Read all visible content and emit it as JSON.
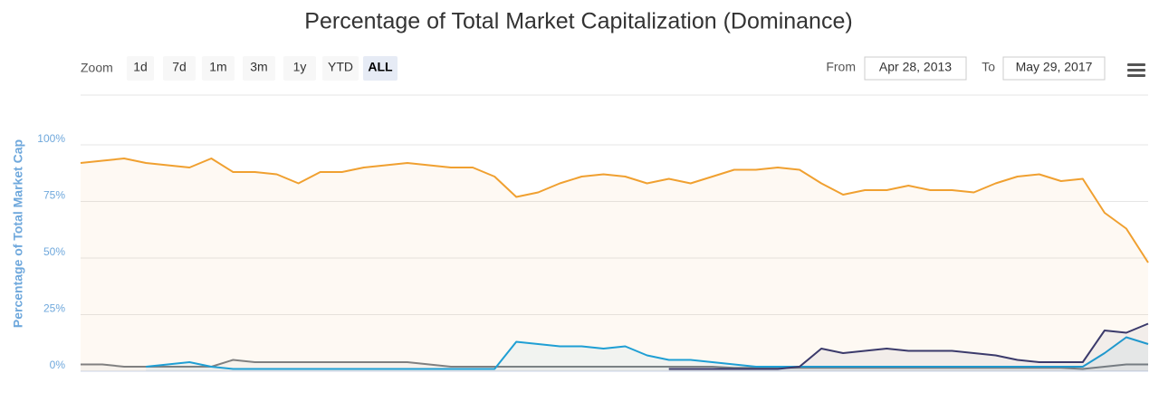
{
  "chart_data": {
    "type": "line",
    "title": "Percentage of Total Market Capitalization (Dominance)",
    "y_label": "Percentage of Total Market Cap",
    "categories": [
      null,
      null,
      null,
      null,
      null,
      null,
      null,
      null,
      null,
      null,
      null,
      null,
      null,
      null,
      null,
      null,
      null,
      null,
      null,
      null,
      null,
      null,
      null,
      null,
      null,
      null,
      null,
      null,
      null,
      null,
      null,
      null,
      null,
      null,
      null,
      null,
      null,
      null,
      null,
      null,
      null,
      null,
      null,
      null,
      null,
      null,
      null,
      null,
      null,
      null
    ],
    "series": [
      {
        "color": "#f0a030",
        "values": [
          92,
          93,
          94,
          92,
          91,
          90,
          94,
          88,
          88,
          87,
          83,
          88,
          88,
          90,
          91,
          92,
          91,
          90,
          90,
          86,
          77,
          79,
          83,
          86,
          87,
          86,
          83,
          85,
          83,
          86,
          89,
          89,
          90,
          89,
          83,
          78,
          80,
          80,
          82,
          80,
          80,
          79,
          83,
          86,
          87,
          84,
          85,
          70,
          63,
          48
        ]
      },
      {
        "color": "#808080",
        "values": [
          3,
          3,
          2,
          2,
          2,
          2,
          2,
          5,
          4,
          4,
          4,
          4,
          4,
          4,
          4,
          4,
          3,
          2,
          2,
          2,
          2,
          2,
          2,
          2,
          2,
          2,
          2,
          2,
          2,
          2,
          1.5,
          1.5,
          1.5,
          1.5,
          1.5,
          1.5,
          1.5,
          1.5,
          1.5,
          1.5,
          1.5,
          1.5,
          1.5,
          1.5,
          1.5,
          1.5,
          1,
          2,
          3,
          3
        ]
      },
      {
        "color": "#1f9fd4",
        "values": [
          null,
          null,
          null,
          2,
          3,
          4,
          2,
          1,
          1,
          1,
          1,
          1,
          1,
          1,
          1,
          1,
          1,
          1,
          1,
          1,
          13,
          12,
          11,
          11,
          10,
          11,
          7,
          5,
          5,
          4,
          3,
          2,
          2,
          2,
          2,
          2,
          2,
          2,
          2,
          2,
          2,
          2,
          2,
          2,
          2,
          2,
          2,
          8,
          15,
          12
        ]
      },
      {
        "color": "#3b3a6b",
        "values": [
          null,
          null,
          null,
          null,
          null,
          null,
          null,
          null,
          null,
          null,
          null,
          null,
          null,
          null,
          null,
          null,
          null,
          null,
          null,
          null,
          null,
          null,
          null,
          null,
          null,
          null,
          null,
          1,
          1,
          1,
          1,
          1,
          1,
          2,
          10,
          8,
          9,
          10,
          9,
          9,
          9,
          8,
          7,
          5,
          4,
          4,
          4,
          18,
          17,
          21
        ]
      }
    ],
    "ylim": [
      0,
      122
    ],
    "yticks": [
      {
        "value": 0,
        "label": "0%"
      },
      {
        "value": 25,
        "label": "25%"
      },
      {
        "value": 50,
        "label": "50%"
      },
      {
        "value": 75,
        "label": "75%"
      },
      {
        "value": 100,
        "label": "100%"
      }
    ],
    "grid": true
  },
  "range_selector": {
    "zoom_label": "Zoom",
    "buttons": [
      "1d",
      "7d",
      "1m",
      "3m",
      "1y",
      "YTD",
      "ALL"
    ],
    "selected": 6,
    "from_label": "From",
    "from": "Apr 28, 2013",
    "to_label": "To",
    "to": "May 29, 2017"
  }
}
